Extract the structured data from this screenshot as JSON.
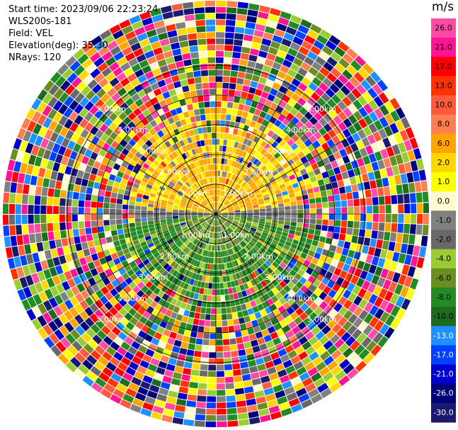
{
  "chart_data": {
    "type": "ppi_radar",
    "start_time_label": "Start time: 2023/09/06 22:23:24",
    "site_label": "WLS200s-181",
    "field_label": "Field: VEL",
    "elevation_label": "Elevation(deg): 35.30",
    "nrays_label": "NRays: 120",
    "nrays": 120,
    "units_label": "m/s",
    "ring_labels": [
      "1.00km",
      "2.00km",
      "3.00km",
      "4.00km",
      "5.00km"
    ],
    "ring_ranges_km": [
      1,
      2,
      3,
      4,
      5
    ],
    "colorbar": {
      "range": [
        -30,
        30
      ],
      "ticks": [
        "26.0",
        "21.0",
        "17.0",
        "13.0",
        "10.0",
        "8.0",
        "6.0",
        "2.0",
        "1.0",
        "0.0",
        "-1.0",
        "-2.0",
        "-4.0",
        "-6.0",
        "-8.0",
        "-10.0",
        "-13.0",
        "-17.0",
        "-21.0",
        "-26.0",
        "-30.0"
      ],
      "colors": [
        "#ff4aa6",
        "#ff1493",
        "#ff0000",
        "#ff3300",
        "#ff5a3c",
        "#ff7f50",
        "#ffa500",
        "#ffd700",
        "#ffff00",
        "#fffacd",
        "#808080",
        "#696969",
        "#9acd32",
        "#6b8e23",
        "#228b22",
        "#1e6b1e",
        "#1e90ff",
        "#0040ff",
        "#0000cd",
        "#00007a",
        "#191970"
      ]
    }
  }
}
